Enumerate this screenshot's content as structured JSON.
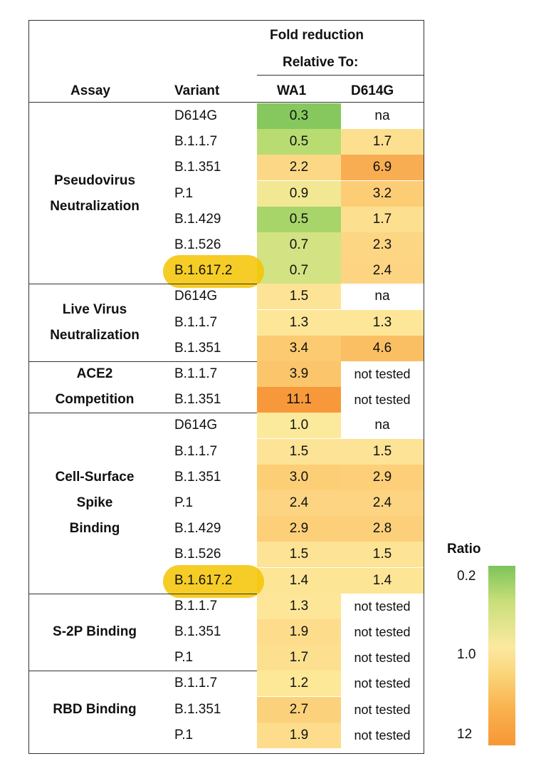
{
  "header": {
    "group_label_line1": "Fold reduction",
    "group_label_line2": "Relative To:",
    "col_assay": "Assay",
    "col_variant": "Variant",
    "col_wa1": "WA1",
    "col_d614g": "D614G"
  },
  "legend": {
    "title": "Ratio",
    "ticks": [
      "0.2",
      "1.0",
      "12"
    ]
  },
  "chart_data": {
    "type": "table",
    "columns": [
      "Assay",
      "Variant",
      "WA1",
      "D614G"
    ],
    "groups": [
      {
        "assay": [
          "Pseudovirus",
          "Neutralization"
        ],
        "rows": [
          {
            "variant": "D614G",
            "wa1": "0.3",
            "d614g": "na",
            "wa1_color": "#86c85d",
            "d614g_color": "#ffffff"
          },
          {
            "variant": "B.1.1.7",
            "wa1": "0.5",
            "d614g": "1.7",
            "wa1_color": "#b9dc72",
            "d614g_color": "#fde08f"
          },
          {
            "variant": "B.1.351",
            "wa1": "2.2",
            "d614g": "6.9",
            "wa1_color": "#fcd886",
            "d614g_color": "#f9ad52"
          },
          {
            "variant": "P.1",
            "wa1": "0.9",
            "d614g": "3.2",
            "wa1_color": "#f2e894",
            "d614g_color": "#fccd74"
          },
          {
            "variant": "B.1.429",
            "wa1": "0.5",
            "d614g": "1.7",
            "wa1_color": "#a8d56a",
            "d614g_color": "#fde08f"
          },
          {
            "variant": "B.1.526",
            "wa1": "0.7",
            "d614g": "2.3",
            "wa1_color": "#d3e282",
            "d614g_color": "#fdd684"
          },
          {
            "variant": "B.1.617.2",
            "wa1": "0.7",
            "d614g": "2.4",
            "wa1_color": "#d3e282",
            "d614g_color": "#fdd582",
            "highlight": true
          }
        ]
      },
      {
        "assay": [
          "Live Virus",
          "Neutralization"
        ],
        "rows": [
          {
            "variant": "D614G",
            "wa1": "1.5",
            "d614g": "na",
            "wa1_color": "#fde395",
            "d614g_color": "#ffffff"
          },
          {
            "variant": "B.1.1.7",
            "wa1": "1.3",
            "d614g": "1.3",
            "wa1_color": "#fde697",
            "d614g_color": "#fde697"
          },
          {
            "variant": "B.1.351",
            "wa1": "3.4",
            "d614g": "4.6",
            "wa1_color": "#fcca70",
            "d614g_color": "#fbbf63"
          }
        ]
      },
      {
        "assay": [
          "ACE2",
          "Competition"
        ],
        "rows": [
          {
            "variant": "B.1.1.7",
            "wa1": "3.9",
            "d614g": "not tested",
            "wa1_color": "#fbc56b",
            "d614g_color": "#ffffff"
          },
          {
            "variant": "B.1.351",
            "wa1": "11.1",
            "d614g": "not tested",
            "wa1_color": "#f7993a",
            "d614g_color": "#ffffff"
          }
        ]
      },
      {
        "assay": [
          "Cell-Surface",
          "Spike",
          "Binding"
        ],
        "rows": [
          {
            "variant": "D614G",
            "wa1": "1.0",
            "d614g": "na",
            "wa1_color": "#fbea9c",
            "d614g_color": "#ffffff"
          },
          {
            "variant": "B.1.1.7",
            "wa1": "1.5",
            "d614g": "1.5",
            "wa1_color": "#fde395",
            "d614g_color": "#fde395"
          },
          {
            "variant": "B.1.351",
            "wa1": "3.0",
            "d614g": "2.9",
            "wa1_color": "#fcce76",
            "d614g_color": "#fccf78"
          },
          {
            "variant": "P.1",
            "wa1": "2.4",
            "d614g": "2.4",
            "wa1_color": "#fdd582",
            "d614g_color": "#fdd582"
          },
          {
            "variant": "B.1.429",
            "wa1": "2.9",
            "d614g": "2.8",
            "wa1_color": "#fccf78",
            "d614g_color": "#fcd07a"
          },
          {
            "variant": "B.1.526",
            "wa1": "1.5",
            "d614g": "1.5",
            "wa1_color": "#fde395",
            "d614g_color": "#fde395"
          },
          {
            "variant": "B.1.617.2",
            "wa1": "1.4",
            "d614g": "1.4",
            "wa1_color": "#fde596",
            "d614g_color": "#fde596",
            "highlight": true
          }
        ]
      },
      {
        "assay": [
          "S-2P Binding"
        ],
        "rows": [
          {
            "variant": "B.1.1.7",
            "wa1": "1.3",
            "d614g": "not tested",
            "wa1_color": "#fde697",
            "d614g_color": "#ffffff"
          },
          {
            "variant": "B.1.351",
            "wa1": "1.9",
            "d614g": "not tested",
            "wa1_color": "#fddc8c",
            "d614g_color": "#ffffff"
          },
          {
            "variant": "P.1",
            "wa1": "1.7",
            "d614g": "not tested",
            "wa1_color": "#fde08f",
            "d614g_color": "#ffffff"
          }
        ]
      },
      {
        "assay": [
          "RBD Binding"
        ],
        "rows": [
          {
            "variant": "B.1.1.7",
            "wa1": "1.2",
            "d614g": "not tested",
            "wa1_color": "#fde898",
            "d614g_color": "#ffffff"
          },
          {
            "variant": "B.1.351",
            "wa1": "2.7",
            "d614g": "not tested",
            "wa1_color": "#fcd17c",
            "d614g_color": "#ffffff"
          },
          {
            "variant": "P.1",
            "wa1": "1.9",
            "d614g": "not tested",
            "wa1_color": "#fddc8c",
            "d614g_color": "#ffffff"
          }
        ]
      }
    ]
  }
}
